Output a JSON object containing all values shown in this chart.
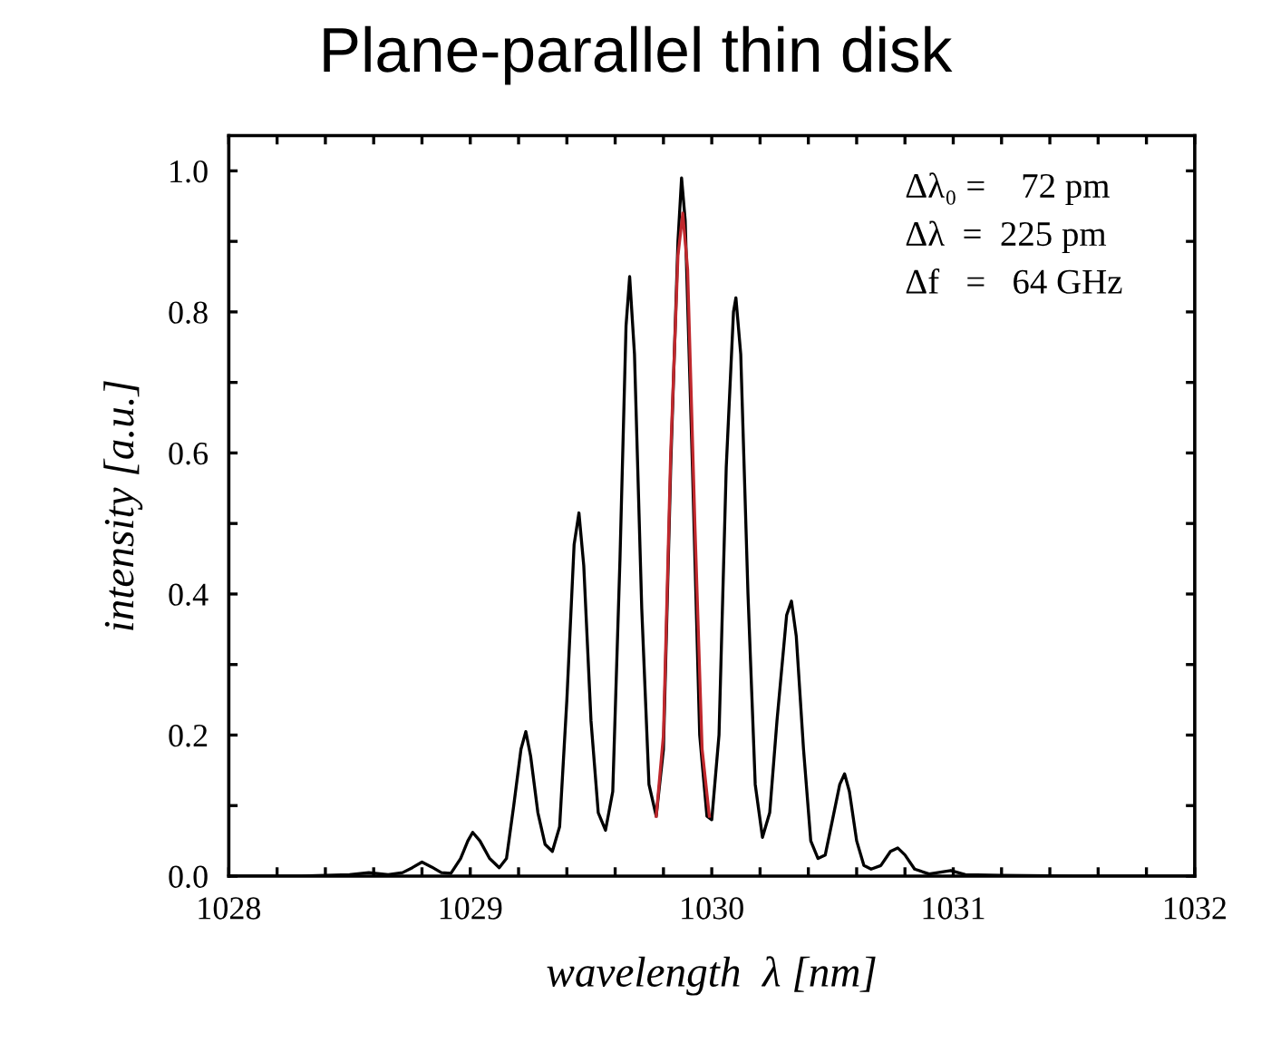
{
  "chart_data": {
    "type": "line",
    "title": "Plane-parallel thin disk",
    "xlabel": "wavelength  λ [nm]",
    "ylabel": "intensity [a.u.]",
    "xlim": [
      1028,
      1032
    ],
    "ylim": [
      0,
      1.05
    ],
    "xticks": [
      1028,
      {
        "value": 1028.2,
        "label": null
      },
      {
        "value": 1028.4,
        "label": null
      },
      {
        "value": 1028.6,
        "label": null
      },
      {
        "value": 1028.8,
        "label": null
      },
      1029,
      {
        "value": 1029.2,
        "label": null
      },
      {
        "value": 1029.4,
        "label": null
      },
      {
        "value": 1029.6,
        "label": null
      },
      {
        "value": 1029.8,
        "label": null
      },
      1030,
      {
        "value": 1030.2,
        "label": null
      },
      {
        "value": 1030.4,
        "label": null
      },
      {
        "value": 1030.6,
        "label": null
      },
      {
        "value": 1030.8,
        "label": null
      },
      1031,
      {
        "value": 1031.2,
        "label": null
      },
      {
        "value": 1031.4,
        "label": null
      },
      {
        "value": 1031.6,
        "label": null
      },
      {
        "value": 1031.8,
        "label": null
      },
      1032
    ],
    "yticks": [
      {
        "value": 0,
        "label": "0.0"
      },
      {
        "value": 0.1,
        "label": null
      },
      {
        "value": 0.2,
        "label": "0.2"
      },
      {
        "value": 0.3,
        "label": null
      },
      {
        "value": 0.4,
        "label": "0.4"
      },
      {
        "value": 0.5,
        "label": null
      },
      {
        "value": 0.6,
        "label": "0.6"
      },
      {
        "value": 0.7,
        "label": null
      },
      {
        "value": 0.8,
        "label": "0.8"
      },
      {
        "value": 0.9,
        "label": null
      },
      {
        "value": 1.0,
        "label": "1.0"
      }
    ],
    "grid": false,
    "marker": "none",
    "line_style": "solid",
    "annotations": [
      "Δλ₀ =    72 pm",
      "Δλ  =  225 pm",
      "Δf   =   64 GHz"
    ],
    "series": [
      {
        "color": "#000000",
        "x": [
          1028.0,
          1028.3,
          1028.5,
          1028.58,
          1028.66,
          1028.72,
          1028.76,
          1028.8,
          1028.84,
          1028.88,
          1028.92,
          1028.96,
          1028.99,
          1029.01,
          1029.04,
          1029.08,
          1029.12,
          1029.15,
          1029.18,
          1029.21,
          1029.23,
          1029.25,
          1029.28,
          1029.31,
          1029.34,
          1029.37,
          1029.4,
          1029.43,
          1029.45,
          1029.47,
          1029.5,
          1029.53,
          1029.56,
          1029.59,
          1029.62,
          1029.645,
          1029.66,
          1029.68,
          1029.71,
          1029.74,
          1029.77,
          1029.8,
          1029.83,
          1029.86,
          1029.875,
          1029.89,
          1029.92,
          1029.95,
          1029.98,
          1030.0,
          1030.03,
          1030.06,
          1030.09,
          1030.1,
          1030.12,
          1030.15,
          1030.18,
          1030.21,
          1030.24,
          1030.27,
          1030.31,
          1030.33,
          1030.35,
          1030.38,
          1030.41,
          1030.44,
          1030.47,
          1030.5,
          1030.53,
          1030.55,
          1030.57,
          1030.6,
          1030.63,
          1030.66,
          1030.7,
          1030.74,
          1030.77,
          1030.8,
          1030.84,
          1030.9,
          1030.99,
          1031.05,
          1031.2,
          1031.5,
          1032.0
        ],
        "values": [
          0.0,
          0.0,
          0.002,
          0.005,
          0.002,
          0.005,
          0.012,
          0.02,
          0.013,
          0.005,
          0.004,
          0.025,
          0.05,
          0.062,
          0.05,
          0.025,
          0.012,
          0.025,
          0.1,
          0.18,
          0.205,
          0.17,
          0.09,
          0.045,
          0.035,
          0.07,
          0.25,
          0.47,
          0.515,
          0.44,
          0.22,
          0.09,
          0.065,
          0.12,
          0.45,
          0.78,
          0.85,
          0.74,
          0.38,
          0.13,
          0.085,
          0.18,
          0.58,
          0.9,
          0.99,
          0.93,
          0.58,
          0.2,
          0.085,
          0.08,
          0.2,
          0.58,
          0.8,
          0.82,
          0.74,
          0.4,
          0.13,
          0.055,
          0.09,
          0.22,
          0.37,
          0.39,
          0.34,
          0.18,
          0.05,
          0.025,
          0.03,
          0.08,
          0.13,
          0.145,
          0.12,
          0.05,
          0.015,
          0.01,
          0.015,
          0.035,
          0.04,
          0.03,
          0.01,
          0.003,
          0.008,
          0.002,
          0.001,
          0.0,
          0.0
        ]
      },
      {
        "color": "#c0282d",
        "x": [
          1029.77,
          1029.8,
          1029.83,
          1029.86,
          1029.88,
          1029.9,
          1029.93,
          1029.96,
          1029.99
        ],
        "values": [
          0.085,
          0.2,
          0.6,
          0.88,
          0.94,
          0.86,
          0.5,
          0.18,
          0.085
        ]
      }
    ]
  }
}
